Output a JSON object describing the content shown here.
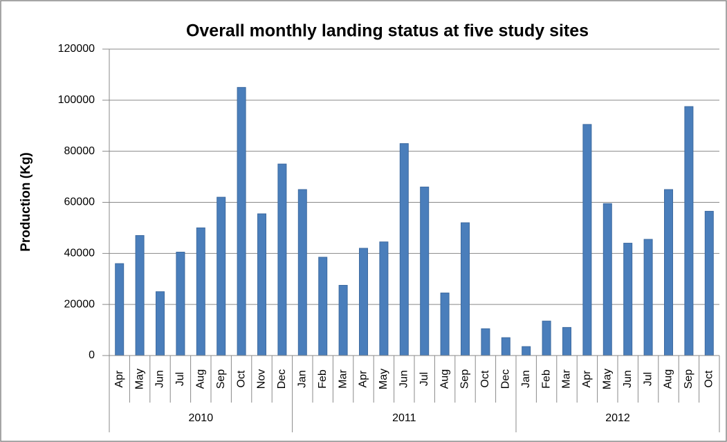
{
  "chart_data": {
    "type": "bar",
    "title": "Overall monthly landing status at five study sites",
    "ylabel": "Production (Kg)",
    "category_groups": [
      {
        "label": "2010",
        "categories": [
          "Apr",
          "May",
          "Jun",
          "Jul",
          "Aug",
          "Sep",
          "Oct",
          "Nov",
          "Dec"
        ]
      },
      {
        "label": "2011",
        "categories": [
          "Jan",
          "Feb",
          "Mar",
          "Apr",
          "May",
          "Jun",
          "Jul",
          "Aug",
          "Sep",
          "Oct",
          "Dec"
        ]
      },
      {
        "label": "2012",
        "categories": [
          "Jan",
          "Feb",
          "Mar",
          "Apr",
          "May",
          "Jun",
          "Jul",
          "Aug",
          "Sep",
          "Oct"
        ]
      }
    ],
    "values": [
      36000,
      47000,
      25000,
      40500,
      50000,
      62000,
      105000,
      55500,
      75000,
      65000,
      38500,
      27500,
      42000,
      44500,
      83000,
      66000,
      24500,
      52000,
      10500,
      7000,
      3500,
      13500,
      11000,
      90500,
      59500,
      44000,
      45500,
      65000,
      97500,
      56500
    ],
    "color": "#4a7ebb",
    "ylim": [
      0,
      120000
    ],
    "yticks": [
      0,
      20000,
      40000,
      60000,
      80000,
      100000,
      120000
    ],
    "grid": true
  }
}
